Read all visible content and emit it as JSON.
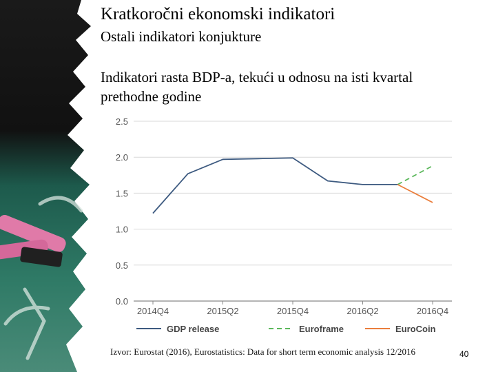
{
  "slide": {
    "title": "Kratkoročni ekonomski indikatori",
    "subtitle": "Ostali indikatori konjukture",
    "body": "Indikatori rasta BDP-a, tekući u odnosu na isti kvartal prethodne godine",
    "source": "Izvor: Eurostat (2016), Eurostatistics: Data for short term economic analysis 12/2016",
    "page_number": "40"
  },
  "colors": {
    "gdp": "#3d5a80",
    "euroframe": "#5cb85c",
    "eurocoin": "#ea7e3c",
    "grid": "#d8d8d8"
  },
  "chart_data": {
    "type": "line",
    "title": "",
    "xlabel": "",
    "ylabel": "",
    "ylim": [
      0,
      2.5
    ],
    "yticks": [
      "0.0",
      "0.5",
      "1.0",
      "1.5",
      "2.0",
      "2.5"
    ],
    "x": [
      "2014Q4",
      "2015Q1",
      "2015Q2",
      "2015Q3",
      "2015Q4",
      "2016Q1",
      "2016Q2",
      "2016Q3",
      "2016Q4"
    ],
    "xtick_labels": [
      "2014Q4",
      "2015Q2",
      "2015Q4",
      "2016Q2",
      "2016Q4"
    ],
    "grid": true,
    "legend": "bottom",
    "series": [
      {
        "name": "GDP release",
        "style": "solid",
        "values": [
          1.22,
          1.77,
          1.97,
          1.98,
          1.99,
          1.67,
          1.62,
          1.62,
          null
        ]
      },
      {
        "name": "Euroframe",
        "style": "dashed",
        "values": [
          null,
          null,
          null,
          null,
          null,
          null,
          null,
          1.62,
          1.88
        ]
      },
      {
        "name": "EuroCoin",
        "style": "solid",
        "values": [
          null,
          null,
          null,
          null,
          null,
          null,
          null,
          1.62,
          1.37
        ]
      }
    ]
  }
}
